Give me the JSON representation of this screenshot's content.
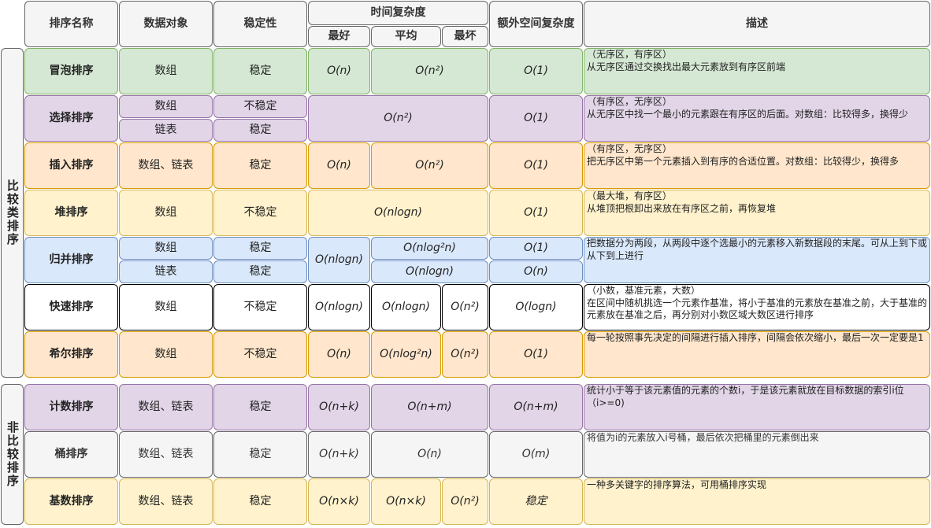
{
  "header": {
    "name": "排序名称",
    "data": "数据对象",
    "stability": "稳定性",
    "time": "时间复杂度",
    "best": "最好",
    "avg": "平均",
    "worst": "最坏",
    "space": "额外空间复杂度",
    "desc": "描述"
  },
  "groups": {
    "comparison": "比较类排序",
    "non_comparison": "非比较排序"
  },
  "colors": {
    "green": "#d5e8d4",
    "purple": "#e1d5e7",
    "orange": "#ffe6cc",
    "yellow": "#fff2cc",
    "blue": "#dae8fc",
    "white": "#ffffff",
    "gray": "#f5f5f5"
  },
  "rows": {
    "bubble": {
      "name": "冒泡排序",
      "data": "数组",
      "stability": "稳定",
      "best": "O(n)",
      "avg_worst": "O(n²)",
      "space": "O(1)",
      "desc1": "（无序区，有序区）",
      "desc2": "从无序区通过交换找出最大元素放到有序区前端"
    },
    "selection": {
      "name": "选择排序",
      "data1": "数组",
      "data2": "链表",
      "stability1": "不稳定",
      "stability2": "稳定",
      "time": "O(n²)",
      "space": "O(1)",
      "desc1": "（有序区，无序区）",
      "desc2": "从无序区中找一个最小的元素跟在有序区的后面。对数组：比较得多，换得少"
    },
    "insertion": {
      "name": "插入排序",
      "data": "数组、链表",
      "stability": "稳定",
      "best": "O(n)",
      "avg_worst": "O(n²)",
      "space": "O(1)",
      "desc1": "（有序区，无序区）",
      "desc2": "把无序区中第一个元素插入到有序的合适位置。对数组：比较得少，换得多"
    },
    "heap": {
      "name": "堆排序",
      "data": "数组",
      "stability": "不稳定",
      "time": "O(nlogn)",
      "space": "O(1)",
      "desc1": "（最大堆，有序区）",
      "desc2": "从堆顶把根卸出来放在有序区之前，再恢复堆"
    },
    "merge": {
      "name": "归并排序",
      "data1": "数组",
      "data2": "链表",
      "stability1": "稳定",
      "stability2": "稳定",
      "best": "O(nlogn)",
      "avg_worst1": "O(nlog²n)",
      "avg_worst2": "O(nlogn)",
      "space1": "O(1)",
      "space2": "O(n)",
      "desc1": "把数据分为两段，从两段中逐个选最小的元素移入新数据段的末尾。可从上到下或从下到上进行"
    },
    "quick": {
      "name": "快速排序",
      "data": "数组",
      "stability": "不稳定",
      "best": "O(nlogn)",
      "avg": "O(nlogn)",
      "worst": "O(n²)",
      "space": "O(logn)",
      "desc1": "（小数，基准元素，大数）",
      "desc2": "在区间中随机挑选一个元素作基准，将小于基准的元素放在基准之前，大于基准的元素放在基准之后，再分别对小数区域大数区进行排序"
    },
    "shell": {
      "name": "希尔排序",
      "data": "数组",
      "stability": "不稳定",
      "best": "O(n)",
      "avg": "O(nlog²n)",
      "worst": "O(n²)",
      "space": "O(1)",
      "desc1": "每一轮按照事先决定的间隔进行插入排序，间隔会依次缩小，最后一次一定要是1"
    },
    "counting": {
      "name": "计数排序",
      "data": "数组、链表",
      "stability": "稳定",
      "best": "O(n+k)",
      "avg_worst": "O(n+m)",
      "space": "O(n+m)",
      "desc1": "统计小于等于该元素值的元素的个数i，于是该元素就放在目标数据的索引i位（i>=0)"
    },
    "bucket": {
      "name": "桶排序",
      "data": "数组、链表",
      "stability": "稳定",
      "best": "O(n+k)",
      "avg_worst": "O(n)",
      "space": "O(m)",
      "desc1": "将值为i的元素放入i号桶，最后依次把桶里的元素倒出来"
    },
    "radix": {
      "name": "基数排序",
      "data": "数组、链表",
      "stability": "稳定",
      "best": "O(n×k)",
      "avg": "O(n×k)",
      "worst": "O(n²)",
      "space": "稳定",
      "desc1": "一种多关键字的排序算法，可用桶排序实现"
    }
  }
}
